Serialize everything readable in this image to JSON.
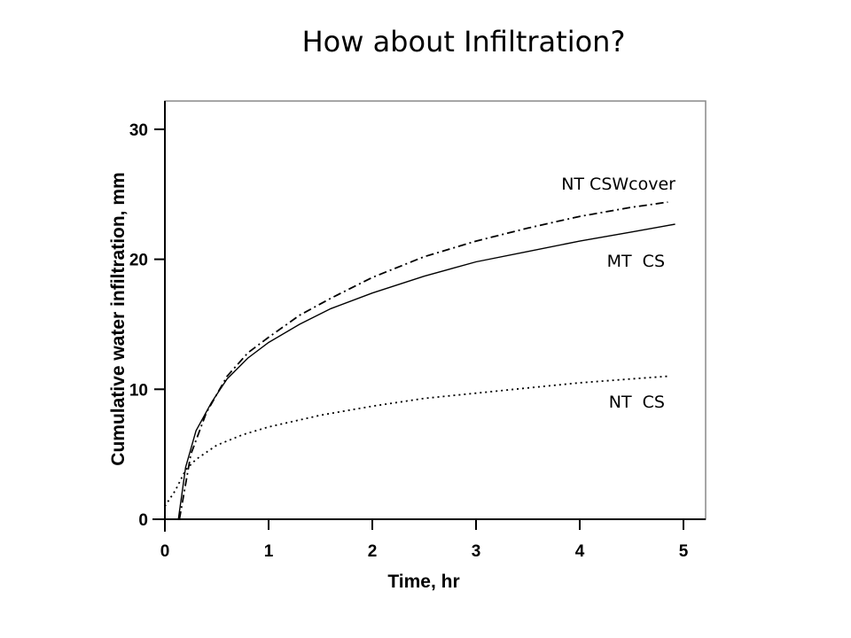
{
  "slide": {
    "title": "How about Infiltration?"
  },
  "chart_data": {
    "type": "line",
    "title": "",
    "xlabel": "Time, hr",
    "ylabel": "Cumulative water infiltration, mm",
    "xlim": [
      0,
      5.2
    ],
    "ylim": [
      0,
      30.5
    ],
    "xticks": [
      "0",
      "1",
      "2",
      "3",
      "4",
      "5"
    ],
    "yticks": [
      "0",
      "10",
      "20",
      "30"
    ],
    "grid": false,
    "legend": "none",
    "series": [
      {
        "name": "NT CSWcover",
        "style": "dashdot",
        "color": "#000000",
        "x": [
          0.14,
          0.25,
          0.4,
          0.6,
          0.8,
          1.0,
          1.3,
          1.6,
          2.0,
          2.5,
          3.0,
          3.5,
          4.0,
          4.5,
          4.85
        ],
        "y": [
          0.0,
          5.0,
          8.2,
          11.0,
          12.8,
          14.0,
          15.7,
          17.0,
          18.6,
          20.2,
          21.4,
          22.4,
          23.3,
          24.0,
          24.4
        ]
      },
      {
        "name": "MT CS",
        "style": "solid",
        "color": "#000000",
        "x": [
          0.13,
          0.2,
          0.3,
          0.45,
          0.6,
          0.8,
          1.0,
          1.3,
          1.6,
          2.0,
          2.5,
          3.0,
          3.5,
          4.0,
          4.5,
          4.92
        ],
        "y": [
          0.0,
          4.0,
          6.8,
          9.0,
          10.8,
          12.4,
          13.6,
          15.0,
          16.2,
          17.4,
          18.7,
          19.8,
          20.6,
          21.4,
          22.1,
          22.7
        ]
      },
      {
        "name": "NT CS",
        "style": "dotted",
        "color": "#000000",
        "x": [
          0.0,
          0.1,
          0.2,
          0.3,
          0.5,
          0.75,
          1.0,
          1.5,
          2.0,
          2.5,
          3.0,
          3.5,
          4.0,
          4.5,
          4.85
        ],
        "y": [
          1.0,
          2.2,
          3.8,
          4.6,
          5.7,
          6.5,
          7.1,
          8.0,
          8.7,
          9.3,
          9.7,
          10.1,
          10.5,
          10.8,
          11.0
        ]
      }
    ]
  }
}
